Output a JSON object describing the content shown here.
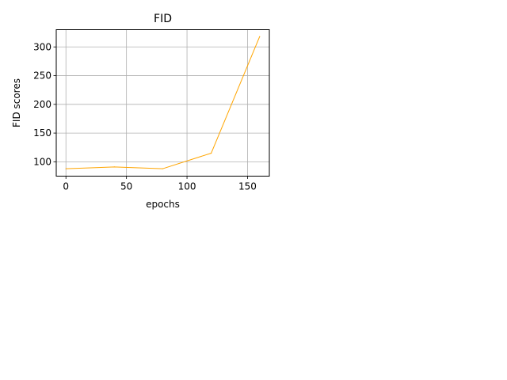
{
  "chart_data": {
    "type": "line",
    "title": "FID",
    "xlabel": "epochs",
    "ylabel": "FID scores",
    "xlim": [
      -8,
      168
    ],
    "ylim": [
      75,
      330
    ],
    "xticks": [
      0,
      50,
      100,
      150
    ],
    "yticks": [
      100,
      150,
      200,
      250,
      300
    ],
    "grid": true,
    "series": [
      {
        "color": "#ffa500",
        "x": [
          0,
          40,
          80,
          120,
          160
        ],
        "y": [
          88,
          91,
          88,
          115,
          318
        ]
      }
    ]
  }
}
